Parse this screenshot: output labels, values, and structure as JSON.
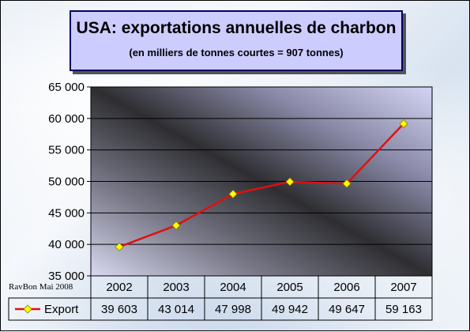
{
  "title": "USA: exportations annuelles de charbon",
  "subtitle": "(en milliers de tonnes courtes = 907 tonnes)",
  "credit": "RavBon Mai 2008",
  "colors": {
    "line": "#e01010",
    "marker": "#ffff00",
    "title_bg": "#ccccff",
    "title_border": "#000066"
  },
  "chart_data": {
    "type": "line",
    "title": "USA: exportations annuelles de charbon",
    "subtitle": "(en milliers de tonnes courtes = 907 tonnes)",
    "categories": [
      "2002",
      "2003",
      "2004",
      "2005",
      "2006",
      "2007"
    ],
    "series": [
      {
        "name": "Export",
        "values": [
          39603,
          43014,
          47998,
          49942,
          49647,
          59163
        ],
        "value_labels": [
          "39 603",
          "43 014",
          "47 998",
          "49 942",
          "49 647",
          "59 163"
        ]
      }
    ],
    "ylim": [
      35000,
      65000
    ],
    "yticks": [
      35000,
      40000,
      45000,
      50000,
      55000,
      60000,
      65000
    ],
    "ytick_labels": [
      "35 000",
      "40 000",
      "45 000",
      "50 000",
      "55 000",
      "60 000",
      "65 000"
    ],
    "grid": true,
    "legend": "data table"
  }
}
